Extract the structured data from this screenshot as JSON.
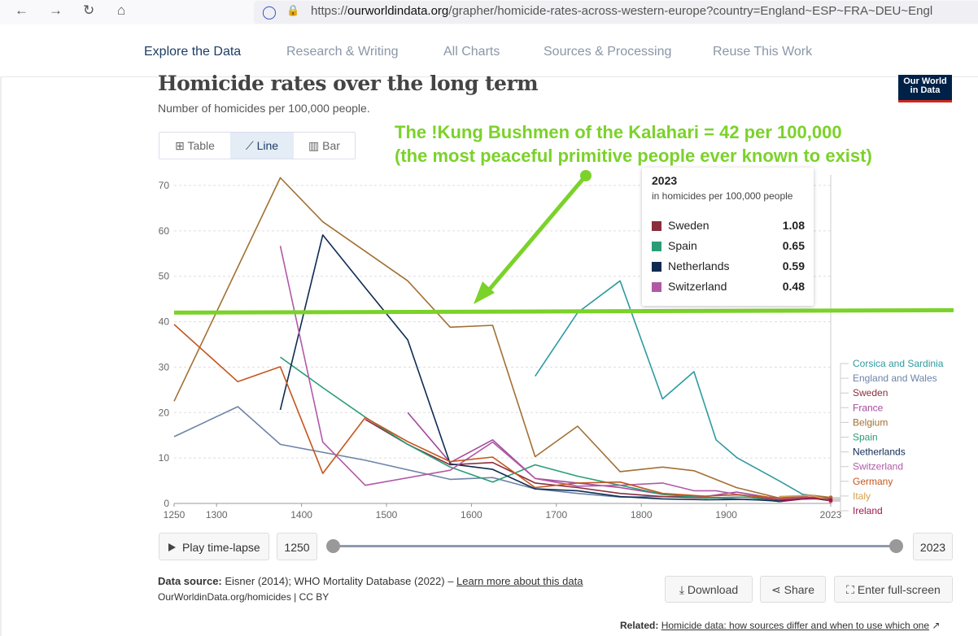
{
  "browser": {
    "back_icon": "←",
    "forward_icon": "→",
    "reload_icon": "↻",
    "home_icon": "⌂",
    "shield_icon": "◯",
    "lock_icon": "🔒",
    "url_prefix": "https://",
    "url_domain": "ourworldindata.org",
    "url_rest": "/grapher/homicide-rates-across-western-europe?country=England~ESP~FRA~DEU~Engl"
  },
  "site_nav": {
    "items": [
      "Explore the Data",
      "Research & Writing",
      "All Charts",
      "Sources & Processing",
      "Reuse This Work"
    ],
    "active": 0
  },
  "header": {
    "title": "Homicide rates over the long term",
    "subtitle": "Number of homicides per 100,000 people.",
    "logo_line1": "Our World",
    "logo_line2": "in Data"
  },
  "view_tabs": {
    "table": "Table",
    "line": "Line",
    "bar": "Bar",
    "table_icon": "⊞",
    "line_icon": "⟋",
    "bar_icon": "▥"
  },
  "annotation": {
    "line1": "The !Kung Bushmen of the Kalahari = 42 per 100,000",
    "line2": "(the most peaceful primitive people ever known to exist)",
    "value": 42,
    "color": "#7bd22a"
  },
  "tooltip": {
    "year": "2023",
    "unit": "in homicides per 100,000 people",
    "rows": [
      {
        "name": "Sweden",
        "value": "1.08",
        "color": "#8b2e3c"
      },
      {
        "name": "Spain",
        "value": "0.65",
        "color": "#2a9d75"
      },
      {
        "name": "Netherlands",
        "value": "0.59",
        "color": "#0f2b52"
      },
      {
        "name": "Switzerland",
        "value": "0.48",
        "color": "#b05aa6"
      }
    ]
  },
  "controls": {
    "play_label": "Play time-lapse",
    "start_year": "1250",
    "end_year": "2023",
    "download": "Download",
    "share": "Share",
    "fullscreen": "Enter full-screen",
    "download_icon": "⤓",
    "share_icon": "⋖",
    "fullscreen_icon": "⛶"
  },
  "footer": {
    "source_label": "Data source:",
    "source_text": "Eisner (2014); WHO Mortality Database (2022) – ",
    "source_link": "Learn more about this data",
    "license": "OurWorldinData.org/homicides | CC BY",
    "related_label": "Related:",
    "related_link": "Homicide data: how sources differ and when to use which one",
    "related_icon": "↗"
  },
  "chart_data": {
    "type": "line",
    "title": "Homicide rates over the long term",
    "subtitle": "Number of homicides per 100,000 people.",
    "xlim": [
      1250,
      2023
    ],
    "ylim": [
      0,
      70
    ],
    "x_ticks": [
      "1250",
      "1300",
      "1400",
      "1500",
      "1600",
      "1700",
      "1800",
      "1900",
      "2023"
    ],
    "y_ticks": [
      "0",
      "10",
      "20",
      "30",
      "40",
      "50",
      "60",
      "70"
    ],
    "grid": "horizontal dashed",
    "series": [
      {
        "name": "Corsica and Sardinia",
        "color": "#2e9aa0",
        "points": [
          [
            1675,
            28
          ],
          [
            1725,
            42
          ],
          [
            1775,
            49
          ],
          [
            1825,
            23
          ],
          [
            1862,
            29
          ],
          [
            1888,
            14
          ],
          [
            1913,
            10
          ],
          [
            1962,
            5
          ],
          [
            1990,
            2
          ],
          [
            2008,
            1.6
          ],
          [
            2023,
            1
          ]
        ]
      },
      {
        "name": "England and Wales",
        "color": "#6d84a8",
        "points": [
          [
            1250,
            14.7
          ],
          [
            1325,
            21.3
          ],
          [
            1375,
            13
          ],
          [
            1475,
            9.5
          ],
          [
            1575,
            5.3
          ],
          [
            1625,
            5.7
          ],
          [
            1675,
            3.2
          ],
          [
            1725,
            2.2
          ],
          [
            1775,
            1.4
          ],
          [
            1825,
            1.5
          ],
          [
            1875,
            1.4
          ],
          [
            1925,
            0.8
          ],
          [
            1962,
            0.7
          ],
          [
            2000,
            1.4
          ],
          [
            2023,
            1
          ]
        ]
      },
      {
        "name": "Sweden",
        "color": "#8b2e3c",
        "points": [
          [
            1475,
            18.5
          ],
          [
            1525,
            13
          ],
          [
            1575,
            8.5
          ],
          [
            1625,
            9
          ],
          [
            1675,
            4.5
          ],
          [
            1725,
            3.5
          ],
          [
            1775,
            2.2
          ],
          [
            1825,
            1.5
          ],
          [
            1875,
            1.2
          ],
          [
            1925,
            1.4
          ],
          [
            1962,
            0.8
          ],
          [
            2000,
            1
          ],
          [
            2023,
            1.08
          ]
        ]
      },
      {
        "name": "France",
        "color": "#a34b9c",
        "points": [
          [
            1525,
            20
          ],
          [
            1575,
            9
          ],
          [
            1625,
            14
          ],
          [
            1675,
            5.5
          ],
          [
            1725,
            4.5
          ],
          [
            1775,
            3.5
          ],
          [
            1825,
            2
          ],
          [
            1875,
            1.5
          ],
          [
            1912,
            2.5
          ],
          [
            1962,
            1
          ],
          [
            2000,
            1.1
          ],
          [
            2023,
            1
          ]
        ]
      },
      {
        "name": "Belgium",
        "color": "#a27033",
        "points": [
          [
            1250,
            22.5
          ],
          [
            1375,
            71.7
          ],
          [
            1425,
            62
          ],
          [
            1525,
            49
          ],
          [
            1575,
            38.8
          ],
          [
            1625,
            39.2
          ],
          [
            1675,
            10.3
          ],
          [
            1725,
            17
          ],
          [
            1775,
            7
          ],
          [
            1825,
            8
          ],
          [
            1862,
            7.2
          ],
          [
            1912,
            3.5
          ],
          [
            1962,
            1.2
          ],
          [
            2000,
            1.8
          ],
          [
            2023,
            1.3
          ]
        ]
      },
      {
        "name": "Spain",
        "color": "#2a9d75",
        "points": [
          [
            1375,
            32.2
          ],
          [
            1425,
            25.5
          ],
          [
            1475,
            19
          ],
          [
            1525,
            13
          ],
          [
            1575,
            8
          ],
          [
            1625,
            4.7
          ],
          [
            1675,
            8.5
          ],
          [
            1725,
            6
          ],
          [
            1775,
            4
          ],
          [
            1825,
            2
          ],
          [
            1875,
            1.2
          ],
          [
            1925,
            1.4
          ],
          [
            1962,
            0.4
          ],
          [
            2000,
            1.2
          ],
          [
            2023,
            0.65
          ]
        ]
      },
      {
        "name": "Netherlands",
        "color": "#0f2b52",
        "points": [
          [
            1375,
            20.6
          ],
          [
            1425,
            59.1
          ],
          [
            1475,
            47.5
          ],
          [
            1525,
            36
          ],
          [
            1575,
            8.7
          ],
          [
            1625,
            7.5
          ],
          [
            1675,
            3.2
          ],
          [
            1725,
            2.8
          ],
          [
            1775,
            1.5
          ],
          [
            1825,
            1
          ],
          [
            1875,
            0.8
          ],
          [
            1925,
            0.9
          ],
          [
            1962,
            0.5
          ],
          [
            2000,
            1.2
          ],
          [
            2023,
            0.59
          ]
        ]
      },
      {
        "name": "Switzerland",
        "color": "#b05aa6",
        "points": [
          [
            1375,
            56.7
          ],
          [
            1425,
            13.5
          ],
          [
            1475,
            4
          ],
          [
            1575,
            7.3
          ],
          [
            1625,
            13.5
          ],
          [
            1675,
            5.5
          ],
          [
            1725,
            3.8
          ],
          [
            1775,
            4
          ],
          [
            1825,
            4.5
          ],
          [
            1862,
            2.8
          ],
          [
            1888,
            2.8
          ],
          [
            1912,
            2
          ],
          [
            1962,
            1
          ],
          [
            2000,
            1.8
          ],
          [
            2023,
            0.48
          ]
        ]
      },
      {
        "name": "Germany",
        "color": "#c4561f",
        "points": [
          [
            1250,
            39.4
          ],
          [
            1325,
            26.8
          ],
          [
            1375,
            30.1
          ],
          [
            1425,
            6.6
          ],
          [
            1475,
            18.9
          ],
          [
            1525,
            13.6
          ],
          [
            1575,
            9.2
          ],
          [
            1625,
            10.2
          ],
          [
            1675,
            3.5
          ],
          [
            1725,
            4.5
          ],
          [
            1775,
            4.7
          ],
          [
            1825,
            2.2
          ],
          [
            1875,
            1.6
          ],
          [
            1912,
            1.9
          ],
          [
            1962,
            1.2
          ],
          [
            2000,
            1.4
          ],
          [
            2023,
            0.9
          ]
        ]
      },
      {
        "name": "Italy",
        "color": "#d4a24c",
        "points": [
          [
            1962,
            1.5
          ],
          [
            2000,
            1.8
          ],
          [
            2023,
            0.6
          ]
        ]
      },
      {
        "name": "Ireland",
        "color": "#a0174e",
        "points": [
          [
            1962,
            0.4
          ],
          [
            2000,
            1.2
          ],
          [
            2023,
            0.7
          ]
        ]
      }
    ],
    "legend": [
      "Corsica and Sardinia",
      "England and Wales",
      "Sweden",
      "France",
      "Belgium",
      "Spain",
      "Netherlands",
      "Switzerland",
      "Germany",
      "Italy",
      "Ireland"
    ],
    "legend_placement": "right"
  }
}
